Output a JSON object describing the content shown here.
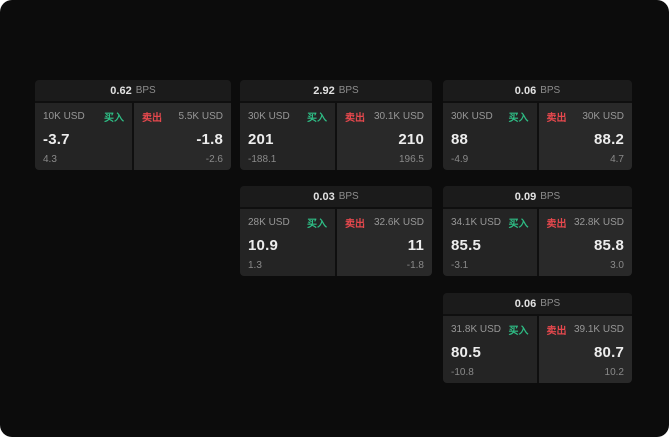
{
  "colors": {
    "background": "#0c0c0c",
    "buy": "#2ebd85",
    "sell": "#e5484d"
  },
  "cards": [
    {
      "bps_value": "0.62",
      "bps_label": "BPS",
      "buy": {
        "amount": "10K USD",
        "side": "买入",
        "price": "-3.7",
        "delta": "4.3"
      },
      "sell": {
        "side": "卖出",
        "amount": "5.5K USD",
        "price": "-1.8",
        "delta": "-2.6"
      }
    },
    {
      "bps_value": "2.92",
      "bps_label": "BPS",
      "buy": {
        "amount": "30K USD",
        "side": "买入",
        "price": "201",
        "delta": "-188.1"
      },
      "sell": {
        "side": "卖出",
        "amount": "30.1K USD",
        "price": "210",
        "delta": "196.5"
      }
    },
    {
      "bps_value": "0.06",
      "bps_label": "BPS",
      "buy": {
        "amount": "30K USD",
        "side": "买入",
        "price": "88",
        "delta": "-4.9"
      },
      "sell": {
        "side": "卖出",
        "amount": "30K USD",
        "price": "88.2",
        "delta": "4.7"
      }
    },
    {
      "bps_value": "0.03",
      "bps_label": "BPS",
      "buy": {
        "amount": "28K USD",
        "side": "买入",
        "price": "10.9",
        "delta": "1.3"
      },
      "sell": {
        "side": "卖出",
        "amount": "32.6K USD",
        "price": "11",
        "delta": "-1.8"
      }
    },
    {
      "bps_value": "0.09",
      "bps_label": "BPS",
      "buy": {
        "amount": "34.1K USD",
        "side": "买入",
        "price": "85.5",
        "delta": "-3.1"
      },
      "sell": {
        "side": "卖出",
        "amount": "32.8K USD",
        "price": "85.8",
        "delta": "3.0"
      }
    },
    {
      "bps_value": "0.06",
      "bps_label": "BPS",
      "buy": {
        "amount": "31.8K USD",
        "side": "买入",
        "price": "80.5",
        "delta": "-10.8"
      },
      "sell": {
        "side": "卖出",
        "amount": "39.1K USD",
        "price": "80.7",
        "delta": "10.2"
      }
    }
  ]
}
